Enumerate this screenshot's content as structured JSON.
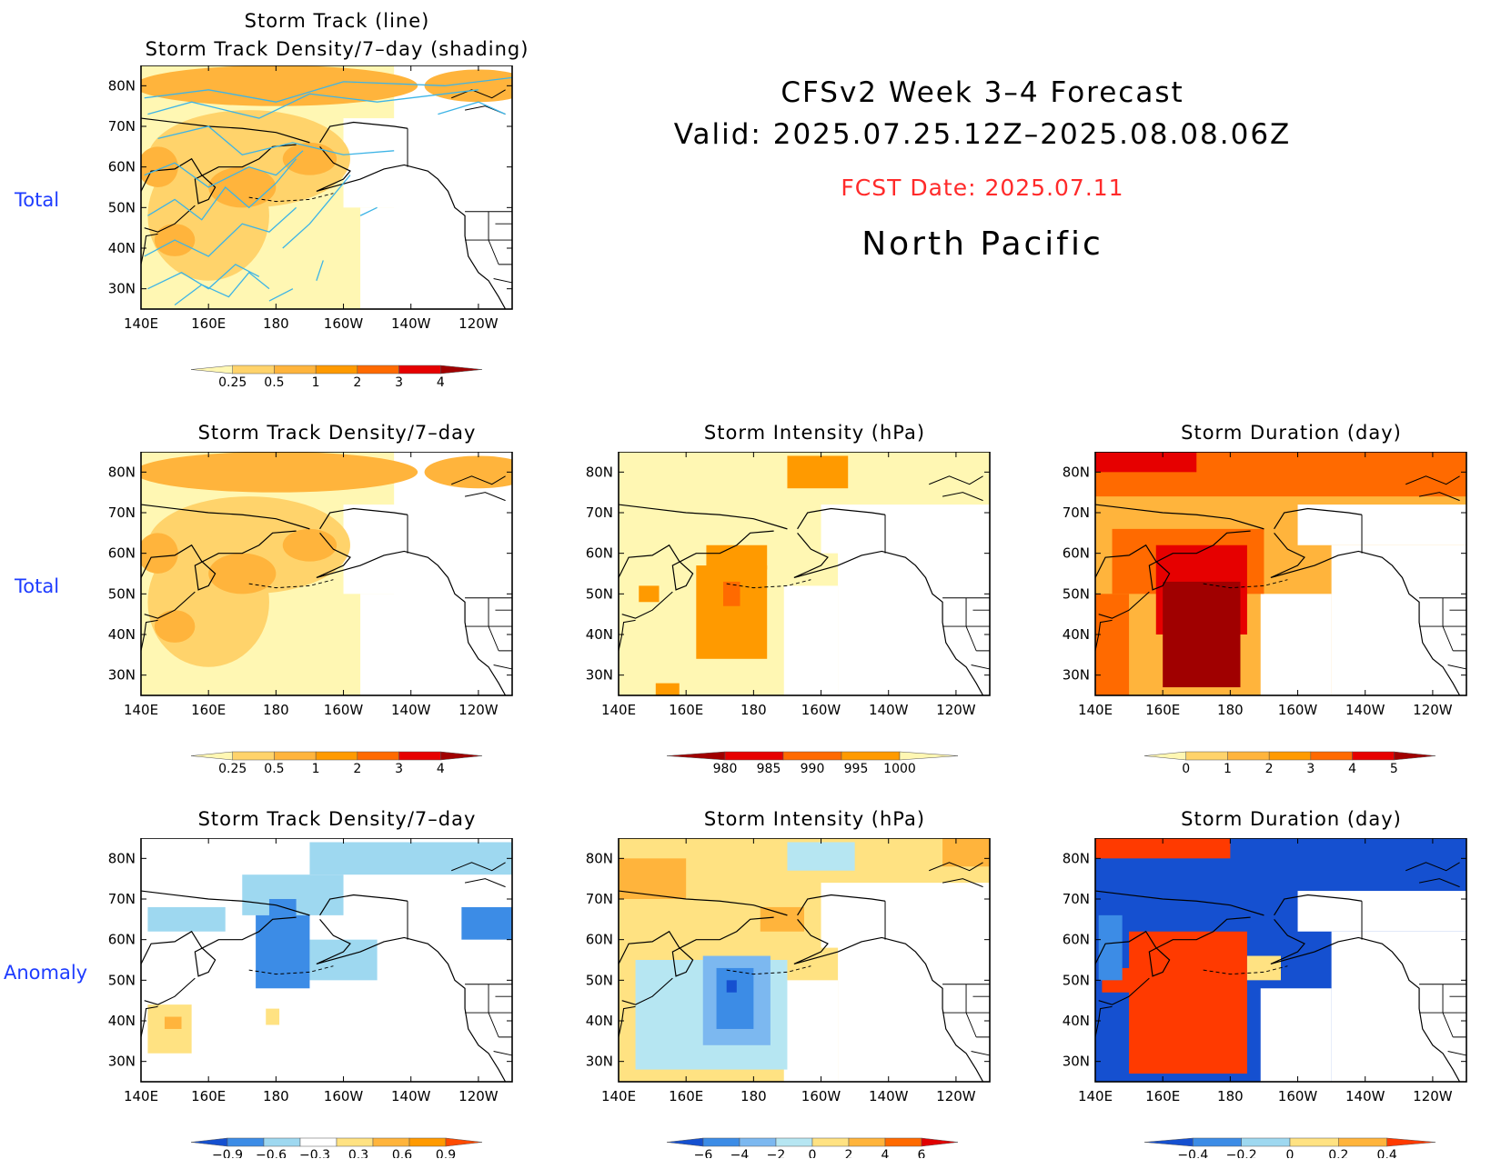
{
  "header": {
    "line1": "CFSv2 Week 3–4 Forecast",
    "line2": "Valid: 2025.07.25.12Z–2025.08.08.06Z",
    "fcst_date": "FCST Date: 2025.07.11",
    "region": "North Pacific"
  },
  "row_labels": {
    "top": "Total",
    "middle": "Total",
    "bottom": "Anomaly"
  },
  "top_panel": {
    "title_line1": "Storm Track (line)",
    "title_line2": "Storm Track Density/7–day (shading)"
  },
  "axes": {
    "x_ticks": [
      "140E",
      "160E",
      "180",
      "160W",
      "140W",
      "120W"
    ],
    "y_ticks": [
      "80N",
      "70N",
      "60N",
      "50N",
      "40N",
      "30N"
    ]
  },
  "colors": {
    "track_line": "#3db4e6",
    "title_red": "#ff2a2a",
    "row_label_blue": "#1e3cff"
  },
  "chart_data": [
    {
      "id": "top-total-density",
      "type": "heatmap",
      "title": "Storm Track (line) / Storm Track Density/7-day (shading)",
      "xlim": [
        "140E",
        "110W"
      ],
      "ylim": [
        25,
        85
      ],
      "colorbar": {
        "labels": [
          "0.25",
          "0.5",
          "1",
          "2",
          "3",
          "4"
        ],
        "colors": [
          "#fff7b3",
          "#ffd36b",
          "#ffb43c",
          "#ff9a00",
          "#ff6a00",
          "#e60000",
          "#a00000"
        ]
      }
    },
    {
      "id": "mid-density",
      "type": "heatmap",
      "title": "Storm Track Density/7–day",
      "colorbar": {
        "labels": [
          "0.25",
          "0.5",
          "1",
          "2",
          "3",
          "4"
        ],
        "colors": [
          "#fff7b3",
          "#ffd36b",
          "#ffb43c",
          "#ff9a00",
          "#ff6a00",
          "#e60000",
          "#a00000"
        ]
      }
    },
    {
      "id": "mid-intensity",
      "type": "heatmap",
      "title": "Storm Intensity (hPa)",
      "colorbar": {
        "labels": [
          "980",
          "985",
          "990",
          "995",
          "1000"
        ],
        "colors": [
          "#a00000",
          "#e60000",
          "#ff6a00",
          "#ff9a00",
          "#fff7b3"
        ]
      }
    },
    {
      "id": "mid-duration",
      "type": "heatmap",
      "title": "Storm Duration (day)",
      "colorbar": {
        "labels": [
          "0",
          "1",
          "2",
          "3",
          "4",
          "5"
        ],
        "colors": [
          "#fff7b3",
          "#ffd36b",
          "#ffb43c",
          "#ff9a00",
          "#ff6a00",
          "#e60000",
          "#a00000"
        ]
      }
    },
    {
      "id": "bot-density-anom",
      "type": "heatmap",
      "title": "Storm Track Density/7–day",
      "colorbar": {
        "labels": [
          "−0.9",
          "−0.6",
          "−0.3",
          "0.3",
          "0.6",
          "0.9"
        ],
        "colors": [
          "#1550d0",
          "#3c8ce6",
          "#9ed8f0",
          "#ffffff",
          "#ffe282",
          "#ffb43c",
          "#ff9a00",
          "#ff4a00"
        ]
      }
    },
    {
      "id": "bot-intensity-anom",
      "type": "heatmap",
      "title": "Storm Intensity (hPa)",
      "colorbar": {
        "labels": [
          "−6",
          "−4",
          "−2",
          "0",
          "2",
          "4",
          "6"
        ],
        "colors": [
          "#1550d0",
          "#3c8ce6",
          "#7cb8f0",
          "#b6e6f2",
          "#ffe282",
          "#ffb43c",
          "#ff6a00",
          "#e00000"
        ]
      }
    },
    {
      "id": "bot-duration-anom",
      "type": "heatmap",
      "title": "Storm Duration (day)",
      "colorbar": {
        "labels": [
          "−0.4",
          "−0.2",
          "0",
          "0.2",
          "0.4"
        ],
        "colors": [
          "#1550d0",
          "#3c8ce6",
          "#9ed8f0",
          "#ffe282",
          "#ffb43c",
          "#ff3a00"
        ]
      }
    }
  ]
}
